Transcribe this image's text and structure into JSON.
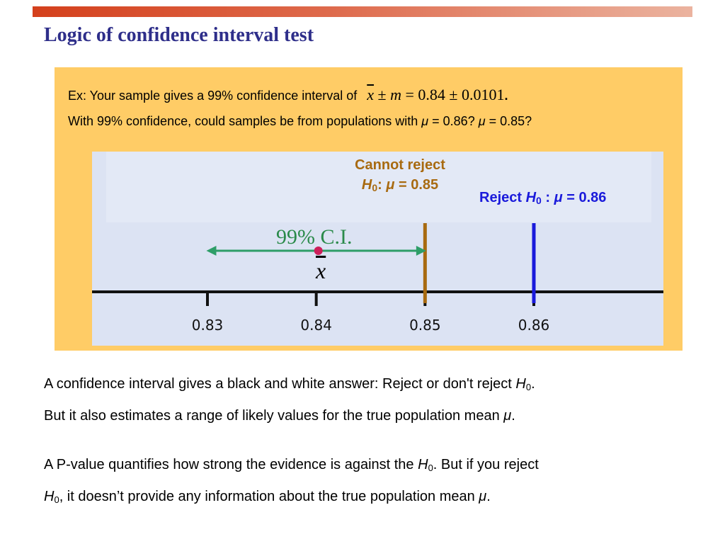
{
  "slide": {
    "title": "Logic of confidence interval test"
  },
  "example": {
    "line1_text": "Ex: Your sample gives a 99% confidence interval of",
    "line1_math": {
      "xbar": "x",
      "pm1": " ± ",
      "m": "m",
      "eq": " = 0.84 ± 0.0101",
      "period": "."
    },
    "line2": {
      "part1": "With 99% confidence, could samples be from populations with ",
      "mu1": "μ",
      "part2": " = 0.86? ",
      "mu2": "μ",
      "part3": " = 0.85?"
    }
  },
  "figure": {
    "cannot_reject": {
      "line1": "Cannot reject",
      "h": "H",
      "h_sub": "0",
      "colon": ": ",
      "mu": "μ",
      "value": " = 0.85"
    },
    "reject": {
      "prefix": "Reject ",
      "h": "H",
      "h_sub": "0",
      "colon": " : ",
      "mu": "μ",
      "value": " = 0.86"
    },
    "ci_label": "99% C.I.",
    "xbar_label": "x",
    "ticks": [
      {
        "label": "0.83",
        "value": 0.83
      },
      {
        "label": "0.84",
        "value": 0.84
      },
      {
        "label": "0.85",
        "value": 0.85
      },
      {
        "label": "0.86",
        "value": 0.86
      }
    ],
    "ci": {
      "center": 0.84,
      "margin": 0.0101
    },
    "colors": {
      "ci_arrow": "#2e9e68",
      "sample_mean_dot": "#cc1f5a",
      "line_085": "#a86a10",
      "line_086": "#1a1adb",
      "axis": "#111111",
      "panel": "#dce3f3",
      "box": "#ffcc66"
    }
  },
  "body": {
    "p1": {
      "text": "A confidence interval gives a black and white answer: Reject or don't reject ",
      "h": "H",
      "h_sub": "0",
      "end": "."
    },
    "p2": {
      "text": "But it also estimates a range of likely values for the true population mean ",
      "mu": "μ",
      "end": "."
    },
    "p3": {
      "text": "A P-value quantifies how strong the evidence is against the ",
      "h": "H",
      "h_sub": "0",
      "end": ". But if you reject"
    },
    "p4": {
      "h": "H",
      "h_sub": "0",
      "text": ", it doesn’t provide any information about the true population mean ",
      "mu": "μ",
      "end": "."
    }
  }
}
